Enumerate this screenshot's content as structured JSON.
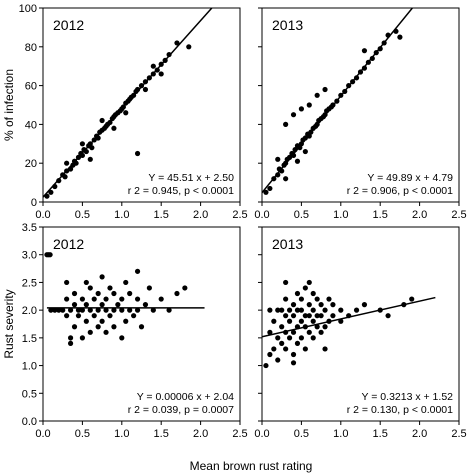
{
  "figure": {
    "shared_xlabel": "Mean brown rust rating",
    "colors": {
      "points": "#000000",
      "line": "#000000",
      "background": "#ffffff"
    }
  },
  "chart_data": [
    {
      "type": "scatter",
      "panel": "top-left",
      "year_label": "2012",
      "ylabel": "% of infection",
      "xlim": [
        0.0,
        2.5
      ],
      "ylim": [
        0,
        100
      ],
      "xticks": [
        "0.0",
        "0.5",
        "1.0",
        "1.5",
        "2.0",
        "2.5"
      ],
      "yticks": [
        "0",
        "20",
        "40",
        "60",
        "80",
        "100"
      ],
      "show_x_tick_labels": true,
      "show_y_tick_labels": true,
      "fit": {
        "slope": 45.51,
        "intercept": 2.5,
        "x_range": [
          0.0,
          2.15
        ]
      },
      "annotation": {
        "equation": "Y = 45.51 x + 2.50",
        "stats": "r 2 = 0.945, p < 0.0001"
      },
      "points": [
        [
          0.05,
          3
        ],
        [
          0.1,
          5
        ],
        [
          0.15,
          8
        ],
        [
          0.2,
          11
        ],
        [
          0.25,
          14
        ],
        [
          0.28,
          13
        ],
        [
          0.3,
          16
        ],
        [
          0.35,
          17
        ],
        [
          0.38,
          19
        ],
        [
          0.4,
          21
        ],
        [
          0.42,
          20
        ],
        [
          0.45,
          23
        ],
        [
          0.48,
          25
        ],
        [
          0.5,
          24
        ],
        [
          0.52,
          27
        ],
        [
          0.55,
          26
        ],
        [
          0.58,
          29
        ],
        [
          0.6,
          30
        ],
        [
          0.62,
          28
        ],
        [
          0.65,
          32
        ],
        [
          0.68,
          34
        ],
        [
          0.7,
          33
        ],
        [
          0.72,
          36
        ],
        [
          0.75,
          37
        ],
        [
          0.78,
          38
        ],
        [
          0.8,
          39
        ],
        [
          0.82,
          40
        ],
        [
          0.85,
          41
        ],
        [
          0.88,
          43
        ],
        [
          0.9,
          44
        ],
        [
          0.92,
          45
        ],
        [
          0.95,
          46
        ],
        [
          0.98,
          47
        ],
        [
          1.0,
          48
        ],
        [
          1.02,
          49
        ],
        [
          1.05,
          51
        ],
        [
          1.08,
          52
        ],
        [
          1.1,
          53
        ],
        [
          1.12,
          54
        ],
        [
          1.15,
          55
        ],
        [
          1.18,
          57
        ],
        [
          1.2,
          58
        ],
        [
          1.25,
          60
        ],
        [
          1.3,
          62
        ],
        [
          1.35,
          64
        ],
        [
          1.4,
          66
        ],
        [
          1.45,
          68
        ],
        [
          1.5,
          71
        ],
        [
          1.55,
          73
        ],
        [
          1.6,
          76
        ],
        [
          1.7,
          82
        ],
        [
          1.85,
          80
        ],
        [
          1.2,
          25
        ],
        [
          0.6,
          22
        ],
        [
          0.75,
          42
        ],
        [
          0.9,
          38
        ],
        [
          1.05,
          46
        ],
        [
          1.3,
          58
        ],
        [
          0.3,
          20
        ],
        [
          0.5,
          30
        ],
        [
          1.4,
          70
        ],
        [
          1.5,
          66
        ]
      ]
    },
    {
      "type": "scatter",
      "panel": "top-right",
      "year_label": "2013",
      "ylabel": "",
      "xlim": [
        0.0,
        2.5
      ],
      "ylim": [
        0,
        100
      ],
      "xticks": [
        "0.0",
        "0.5",
        "1.0",
        "1.5",
        "2.0",
        "2.5"
      ],
      "yticks": [
        "0",
        "20",
        "40",
        "60",
        "80",
        "100"
      ],
      "show_x_tick_labels": true,
      "show_y_tick_labels": false,
      "fit": {
        "slope": 49.89,
        "intercept": 4.79,
        "x_range": [
          0.0,
          1.95
        ]
      },
      "annotation": {
        "equation": "Y = 49.89 x + 4.79",
        "stats": "r 2 = 0.906, p < 0.0001"
      },
      "points": [
        [
          0.05,
          5
        ],
        [
          0.1,
          7
        ],
        [
          0.15,
          12
        ],
        [
          0.2,
          14
        ],
        [
          0.22,
          17
        ],
        [
          0.25,
          16
        ],
        [
          0.28,
          19
        ],
        [
          0.3,
          20
        ],
        [
          0.32,
          22
        ],
        [
          0.35,
          23
        ],
        [
          0.38,
          25
        ],
        [
          0.4,
          24
        ],
        [
          0.42,
          27
        ],
        [
          0.45,
          29
        ],
        [
          0.48,
          28
        ],
        [
          0.5,
          30
        ],
        [
          0.52,
          32
        ],
        [
          0.55,
          33
        ],
        [
          0.58,
          35
        ],
        [
          0.6,
          34
        ],
        [
          0.62,
          36
        ],
        [
          0.65,
          38
        ],
        [
          0.68,
          39
        ],
        [
          0.7,
          40
        ],
        [
          0.72,
          42
        ],
        [
          0.75,
          43
        ],
        [
          0.78,
          44
        ],
        [
          0.8,
          45
        ],
        [
          0.82,
          47
        ],
        [
          0.85,
          48
        ],
        [
          0.88,
          49
        ],
        [
          0.9,
          50
        ],
        [
          0.95,
          52
        ],
        [
          1.0,
          55
        ],
        [
          1.05,
          57
        ],
        [
          1.1,
          60
        ],
        [
          1.15,
          62
        ],
        [
          1.2,
          64
        ],
        [
          1.25,
          67
        ],
        [
          1.3,
          69
        ],
        [
          1.35,
          72
        ],
        [
          1.4,
          74
        ],
        [
          1.45,
          77
        ],
        [
          1.5,
          79
        ],
        [
          1.55,
          82
        ],
        [
          1.6,
          86
        ],
        [
          1.7,
          88
        ],
        [
          1.75,
          85
        ],
        [
          0.3,
          40
        ],
        [
          0.4,
          45
        ],
        [
          0.5,
          48
        ],
        [
          0.55,
          26
        ],
        [
          0.6,
          50
        ],
        [
          0.7,
          55
        ],
        [
          0.3,
          12
        ],
        [
          0.45,
          21
        ],
        [
          0.8,
          58
        ],
        [
          1.3,
          78
        ],
        [
          0.2,
          22
        ]
      ]
    },
    {
      "type": "scatter",
      "panel": "bottom-left",
      "year_label": "2012",
      "ylabel": "Rust severity",
      "xlim": [
        0.0,
        2.5
      ],
      "ylim": [
        0.0,
        3.5
      ],
      "xticks": [
        "0.0",
        "0.5",
        "1.0",
        "1.5",
        "2.0",
        "2.5"
      ],
      "yticks": [
        "0.0",
        "0.5",
        "1.0",
        "1.5",
        "2.0",
        "2.5",
        "3.0",
        "3.5"
      ],
      "show_x_tick_labels": true,
      "show_y_tick_labels": true,
      "fit": {
        "slope": 6e-05,
        "intercept": 2.04,
        "x_range": [
          0.05,
          2.05
        ]
      },
      "annotation": {
        "equation": "Y = 0.00006 x + 2.04",
        "stats": "r 2 = 0.039, p = 0.0007"
      },
      "points": [
        [
          0.05,
          3.0
        ],
        [
          0.07,
          3.0
        ],
        [
          0.09,
          3.0
        ],
        [
          0.1,
          2.0
        ],
        [
          0.15,
          2.0
        ],
        [
          0.2,
          2.0
        ],
        [
          0.25,
          2.0
        ],
        [
          0.3,
          1.9
        ],
        [
          0.3,
          2.2
        ],
        [
          0.3,
          2.5
        ],
        [
          0.35,
          1.5
        ],
        [
          0.35,
          2.0
        ],
        [
          0.4,
          1.7
        ],
        [
          0.4,
          2.1
        ],
        [
          0.4,
          2.3
        ],
        [
          0.45,
          1.9
        ],
        [
          0.45,
          2.0
        ],
        [
          0.5,
          1.5
        ],
        [
          0.5,
          2.0
        ],
        [
          0.5,
          2.2
        ],
        [
          0.55,
          1.8
        ],
        [
          0.55,
          2.1
        ],
        [
          0.6,
          1.6
        ],
        [
          0.6,
          2.0
        ],
        [
          0.6,
          2.4
        ],
        [
          0.65,
          1.9
        ],
        [
          0.65,
          2.2
        ],
        [
          0.7,
          1.7
        ],
        [
          0.7,
          2.0
        ],
        [
          0.7,
          2.3
        ],
        [
          0.75,
          1.8
        ],
        [
          0.75,
          2.1
        ],
        [
          0.75,
          2.6
        ],
        [
          0.8,
          1.6
        ],
        [
          0.8,
          2.0
        ],
        [
          0.8,
          2.2
        ],
        [
          0.85,
          1.9
        ],
        [
          0.85,
          2.4
        ],
        [
          0.9,
          1.7
        ],
        [
          0.9,
          2.0
        ],
        [
          0.9,
          2.3
        ],
        [
          0.95,
          2.1
        ],
        [
          1.0,
          1.5
        ],
        [
          1.0,
          2.0
        ],
        [
          1.0,
          2.2
        ],
        [
          1.05,
          1.8
        ],
        [
          1.05,
          2.5
        ],
        [
          1.1,
          2.0
        ],
        [
          1.1,
          2.3
        ],
        [
          1.15,
          1.9
        ],
        [
          1.2,
          2.0
        ],
        [
          1.2,
          2.2
        ],
        [
          1.25,
          1.7
        ],
        [
          1.3,
          2.1
        ],
        [
          1.35,
          2.4
        ],
        [
          1.4,
          2.0
        ],
        [
          1.5,
          2.2
        ],
        [
          1.6,
          2.0
        ],
        [
          1.7,
          2.3
        ],
        [
          1.8,
          2.4
        ],
        [
          1.2,
          2.7
        ],
        [
          0.35,
          1.4
        ],
        [
          0.55,
          2.5
        ]
      ]
    },
    {
      "type": "scatter",
      "panel": "bottom-right",
      "year_label": "2013",
      "ylabel": "",
      "xlim": [
        0.0,
        2.5
      ],
      "ylim": [
        0.0,
        3.5
      ],
      "xticks": [
        "0.0",
        "0.5",
        "1.0",
        "1.5",
        "2.0",
        "2.5"
      ],
      "yticks": [
        "0.0",
        "0.5",
        "1.0",
        "1.5",
        "2.0",
        "2.5",
        "3.0",
        "3.5"
      ],
      "show_x_tick_labels": true,
      "show_y_tick_labels": false,
      "fit": {
        "slope": 0.3213,
        "intercept": 1.52,
        "x_range": [
          0.0,
          2.2
        ]
      },
      "annotation": {
        "equation": "Y = 0.3213 x + 1.52",
        "stats": "r 2 = 0.130, p < 0.0001"
      },
      "points": [
        [
          0.05,
          1.0
        ],
        [
          0.1,
          1.2
        ],
        [
          0.1,
          1.6
        ],
        [
          0.15,
          1.3
        ],
        [
          0.15,
          1.8
        ],
        [
          0.2,
          1.5
        ],
        [
          0.2,
          2.0
        ],
        [
          0.2,
          1.1
        ],
        [
          0.25,
          1.4
        ],
        [
          0.25,
          1.7
        ],
        [
          0.25,
          2.0
        ],
        [
          0.3,
          1.3
        ],
        [
          0.3,
          1.6
        ],
        [
          0.3,
          1.9
        ],
        [
          0.3,
          2.2
        ],
        [
          0.35,
          1.5
        ],
        [
          0.35,
          1.8
        ],
        [
          0.35,
          2.0
        ],
        [
          0.4,
          1.2
        ],
        [
          0.4,
          1.6
        ],
        [
          0.4,
          1.9
        ],
        [
          0.4,
          2.1
        ],
        [
          0.45,
          1.4
        ],
        [
          0.45,
          1.7
        ],
        [
          0.45,
          2.0
        ],
        [
          0.45,
          2.3
        ],
        [
          0.5,
          1.5
        ],
        [
          0.5,
          1.8
        ],
        [
          0.5,
          2.0
        ],
        [
          0.5,
          2.2
        ],
        [
          0.55,
          1.3
        ],
        [
          0.55,
          1.7
        ],
        [
          0.55,
          1.9
        ],
        [
          0.55,
          2.4
        ],
        [
          0.6,
          1.6
        ],
        [
          0.6,
          1.9
        ],
        [
          0.6,
          2.1
        ],
        [
          0.65,
          1.5
        ],
        [
          0.65,
          1.8
        ],
        [
          0.65,
          2.0
        ],
        [
          0.65,
          2.3
        ],
        [
          0.7,
          1.7
        ],
        [
          0.7,
          1.9
        ],
        [
          0.7,
          2.2
        ],
        [
          0.75,
          1.6
        ],
        [
          0.75,
          1.9
        ],
        [
          0.75,
          2.1
        ],
        [
          0.8,
          1.7
        ],
        [
          0.8,
          2.0
        ],
        [
          0.85,
          1.8
        ],
        [
          0.85,
          2.2
        ],
        [
          0.9,
          1.9
        ],
        [
          0.9,
          2.1
        ],
        [
          1.0,
          1.8
        ],
        [
          1.0,
          2.0
        ],
        [
          1.1,
          1.9
        ],
        [
          1.2,
          2.0
        ],
        [
          1.3,
          2.1
        ],
        [
          1.5,
          2.0
        ],
        [
          1.6,
          1.9
        ],
        [
          1.8,
          2.1
        ],
        [
          1.9,
          2.2
        ],
        [
          0.1,
          2.0
        ],
        [
          0.3,
          2.5
        ],
        [
          0.6,
          2.5
        ],
        [
          0.8,
          1.3
        ],
        [
          0.4,
          1.05
        ]
      ]
    }
  ]
}
